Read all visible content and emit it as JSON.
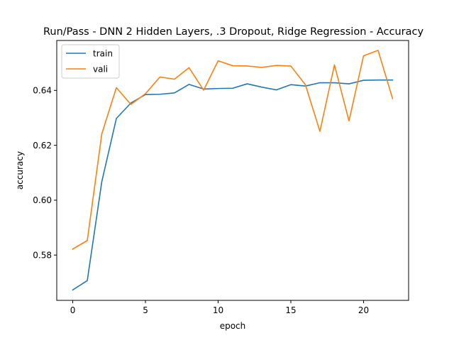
{
  "chart_data": {
    "type": "line",
    "title": "Run/Pass - DNN 2 Hidden Layers, .3 Dropout, Ridge Regression - Accuracy",
    "xlabel": "epoch",
    "ylabel": "accuracy",
    "xlim": [
      -1.1,
      23.1
    ],
    "ylim": [
      0.5635,
      0.6582
    ],
    "xticks": [
      0,
      5,
      10,
      15,
      20
    ],
    "yticks": [
      0.58,
      0.6,
      0.62,
      0.64
    ],
    "ytick_labels": [
      "0.58",
      "0.60",
      "0.62",
      "0.64"
    ],
    "grid": false,
    "legend": "upper left",
    "x": [
      0,
      1,
      2,
      3,
      4,
      5,
      6,
      7,
      8,
      9,
      10,
      11,
      12,
      13,
      14,
      15,
      16,
      17,
      18,
      19,
      20,
      21,
      22
    ],
    "series": [
      {
        "name": "train",
        "color": "#1f77b4",
        "values": [
          0.5673,
          0.5707,
          0.6068,
          0.6298,
          0.6354,
          0.6385,
          0.6386,
          0.6391,
          0.6422,
          0.6405,
          0.6407,
          0.6408,
          0.6424,
          0.6412,
          0.6402,
          0.6421,
          0.6416,
          0.6428,
          0.6428,
          0.6424,
          0.6437,
          0.6438,
          0.6438
        ]
      },
      {
        "name": "vali",
        "color": "#ff7f0e",
        "values": [
          0.5822,
          0.5853,
          0.6242,
          0.641,
          0.6349,
          0.6388,
          0.6449,
          0.6441,
          0.6483,
          0.6401,
          0.6508,
          0.649,
          0.6489,
          0.6484,
          0.6491,
          0.6489,
          0.6421,
          0.6251,
          0.6493,
          0.6289,
          0.6526,
          0.6546,
          0.637
        ]
      }
    ]
  }
}
